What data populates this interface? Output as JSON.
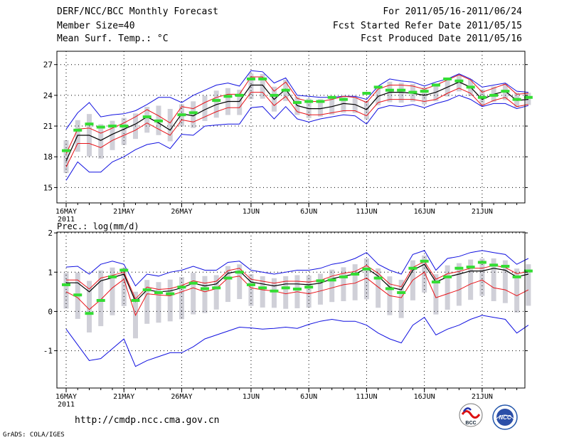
{
  "header": {
    "title": "DERF/NCC/BCC Monthly Forecast",
    "member": "Member Size=40",
    "variable": "Mean Surf. Temp.: °C",
    "period": "For 2011/05/16-2011/06/24",
    "started": "Fcst Started Refer Date 2011/05/15",
    "produced": "Fcst Produced Date 2011/05/16"
  },
  "colors": {
    "mean": "#000000",
    "sd": "#e8141a",
    "extreme": "#1010e0",
    "obs": "#33dd33",
    "box": "#d0d0d8",
    "grid": "#000000"
  },
  "footer": {
    "url": "http://cmdp.ncc.cma.gov.cn",
    "grads": "GrADS: COLA/IGES",
    "logo1": "BCC",
    "logo2": "NCC"
  },
  "chart_data": [
    {
      "type": "line",
      "title": "Mean Surf. Temp.: °C",
      "ylim": [
        13.5,
        28.3
      ],
      "yticks": [
        15,
        18,
        21,
        24,
        27
      ],
      "xlim": [
        0.2,
        40.7
      ],
      "xticks": [
        {
          "day": 1,
          "label": "16MAY",
          "sub": "2011"
        },
        {
          "day": 6,
          "label": "21MAY"
        },
        {
          "day": 11,
          "label": "26MAY"
        },
        {
          "day": 17,
          "label": "1JUN"
        },
        {
          "day": 22,
          "label": "6JUN"
        },
        {
          "day": 27,
          "label": "11JUN"
        },
        {
          "day": 32,
          "label": "16JUN"
        },
        {
          "day": 37,
          "label": "21JUN"
        }
      ],
      "series": [
        {
          "name": "mean",
          "values": [
            17.6,
            20.1,
            20.1,
            19.6,
            20.2,
            20.7,
            21.2,
            21.9,
            21.3,
            20.6,
            22.2,
            22.0,
            22.6,
            23.1,
            23.4,
            23.4,
            25.0,
            25.0,
            23.6,
            24.6,
            23.0,
            22.7,
            22.7,
            22.9,
            23.2,
            23.1,
            22.6,
            23.9,
            24.3,
            24.3,
            24.2,
            24.0,
            24.3,
            24.8,
            25.3,
            24.8,
            23.6,
            24.1,
            24.4,
            23.5,
            23.6
          ]
        },
        {
          "name": "sd_upper",
          "values": [
            18.3,
            20.7,
            20.8,
            20.3,
            20.8,
            21.3,
            21.9,
            22.6,
            22.0,
            21.3,
            22.9,
            22.7,
            23.3,
            23.8,
            24.1,
            24.1,
            25.8,
            25.8,
            24.4,
            25.3,
            23.7,
            23.4,
            23.4,
            23.6,
            23.9,
            23.8,
            23.3,
            24.6,
            25.0,
            25.0,
            24.9,
            24.6,
            25.0,
            25.5,
            26.0,
            25.5,
            24.3,
            24.7,
            25.1,
            24.1,
            24.2
          ]
        },
        {
          "name": "sd_lower",
          "values": [
            17.0,
            19.3,
            19.3,
            18.9,
            19.6,
            20.1,
            20.6,
            21.3,
            20.7,
            20.1,
            21.6,
            21.4,
            21.9,
            22.4,
            22.8,
            22.8,
            24.3,
            24.3,
            23.0,
            23.9,
            22.4,
            22.1,
            22.1,
            22.3,
            22.5,
            22.5,
            22.0,
            23.3,
            23.6,
            23.6,
            23.6,
            23.4,
            23.6,
            24.2,
            24.7,
            24.2,
            23.0,
            23.5,
            23.8,
            22.9,
            23.1
          ]
        },
        {
          "name": "max",
          "values": [
            20.7,
            22.3,
            23.3,
            21.9,
            22.1,
            22.2,
            22.5,
            23.1,
            23.8,
            23.8,
            23.3,
            24.0,
            24.5,
            25.0,
            25.2,
            24.9,
            26.4,
            26.3,
            25.2,
            25.7,
            24.0,
            23.9,
            23.8,
            23.8,
            23.9,
            23.9,
            23.6,
            24.9,
            25.6,
            25.4,
            25.3,
            24.9,
            25.3,
            25.6,
            26.1,
            25.6,
            24.8,
            25.0,
            25.2,
            24.4,
            24.3
          ]
        },
        {
          "name": "min",
          "values": [
            15.7,
            17.5,
            16.5,
            16.5,
            17.5,
            18.0,
            18.7,
            19.2,
            19.4,
            18.8,
            20.2,
            20.1,
            21.0,
            21.1,
            21.2,
            21.2,
            22.8,
            22.9,
            21.7,
            22.9,
            21.7,
            21.4,
            21.7,
            21.9,
            22.1,
            22.0,
            21.2,
            22.7,
            23.0,
            22.9,
            23.1,
            22.8,
            23.2,
            23.5,
            24.0,
            23.6,
            22.9,
            23.2,
            23.2,
            22.7,
            23.0
          ]
        },
        {
          "name": "obs",
          "values": [
            18.6,
            20.6,
            21.2,
            20.9,
            21.0,
            21.0,
            null,
            21.9,
            21.5,
            null,
            22.1,
            22.3,
            null,
            23.5,
            23.9,
            24.0,
            25.6,
            25.6,
            24.0,
            24.5,
            23.3,
            23.4,
            23.4,
            23.8,
            23.6,
            null,
            24.2,
            24.8,
            24.5,
            24.5,
            24.3,
            24.4,
            25.0,
            25.6,
            25.4,
            24.8,
            23.8,
            24.0,
            24.4,
            23.6,
            23.8
          ]
        }
      ]
    },
    {
      "type": "line",
      "title": "Prec.: log(mm/d)",
      "ylim": [
        -1.95,
        2.02
      ],
      "yticks": [
        -1,
        0,
        1,
        2
      ],
      "xlim": [
        0.2,
        40.7
      ],
      "xticks": [
        {
          "day": 1,
          "label": "16MAY",
          "sub": "2011"
        },
        {
          "day": 6,
          "label": "21MAY"
        },
        {
          "day": 11,
          "label": "26MAY"
        },
        {
          "day": 17,
          "label": "1JUN"
        },
        {
          "day": 22,
          "label": "6JUN"
        },
        {
          "day": 27,
          "label": "11JUN"
        },
        {
          "day": 32,
          "label": "16JUN"
        },
        {
          "day": 37,
          "label": "21JUN"
        }
      ],
      "series": [
        {
          "name": "mean",
          "values": [
            0.73,
            0.73,
            0.5,
            0.78,
            0.86,
            0.95,
            0.25,
            0.55,
            0.5,
            0.52,
            0.6,
            0.72,
            0.65,
            0.7,
            0.97,
            1.03,
            0.75,
            0.7,
            0.65,
            0.7,
            0.7,
            0.68,
            0.72,
            0.83,
            0.9,
            0.95,
            1.1,
            0.9,
            0.62,
            0.55,
            1.05,
            1.2,
            0.75,
            0.88,
            0.95,
            1.03,
            1.03,
            1.1,
            1.05,
            0.88,
            0.95
          ]
        },
        {
          "name": "sd_upper",
          "values": [
            0.8,
            0.8,
            0.57,
            0.85,
            0.92,
            1.0,
            0.32,
            0.62,
            0.56,
            0.58,
            0.66,
            0.78,
            0.72,
            0.77,
            1.04,
            1.1,
            0.82,
            0.77,
            0.72,
            0.77,
            0.77,
            0.75,
            0.79,
            0.9,
            0.97,
            1.02,
            1.17,
            0.97,
            0.7,
            0.63,
            1.12,
            1.27,
            0.82,
            0.96,
            1.02,
            1.1,
            1.1,
            1.17,
            1.12,
            0.96,
            1.02
          ]
        },
        {
          "name": "sd_lower",
          "values": [
            0.5,
            0.35,
            0.05,
            0.3,
            0.6,
            0.82,
            -0.1,
            0.45,
            0.42,
            0.4,
            0.5,
            0.6,
            0.5,
            0.58,
            0.85,
            0.9,
            0.6,
            0.55,
            0.52,
            0.45,
            0.5,
            0.45,
            0.52,
            0.6,
            0.68,
            0.72,
            0.85,
            0.62,
            0.4,
            0.35,
            0.8,
            1.0,
            0.35,
            0.45,
            0.55,
            0.7,
            0.8,
            0.6,
            0.55,
            0.4,
            0.55
          ]
        },
        {
          "name": "max",
          "values": [
            1.13,
            1.15,
            0.95,
            1.2,
            1.28,
            1.2,
            0.65,
            0.95,
            0.9,
            1.0,
            1.05,
            1.15,
            1.05,
            1.05,
            1.25,
            1.28,
            1.05,
            1.0,
            0.95,
            1.0,
            1.05,
            1.05,
            1.1,
            1.2,
            1.25,
            1.35,
            1.5,
            1.2,
            1.05,
            0.95,
            1.45,
            1.55,
            1.05,
            1.35,
            1.4,
            1.5,
            1.55,
            1.5,
            1.45,
            1.2,
            1.35
          ]
        },
        {
          "name": "min",
          "values": [
            -0.45,
            -0.85,
            -1.25,
            -1.2,
            -0.95,
            -0.7,
            -1.4,
            -1.25,
            -1.15,
            -1.05,
            -1.05,
            -0.9,
            -0.7,
            -0.6,
            -0.5,
            -0.4,
            -0.42,
            -0.45,
            -0.43,
            -0.4,
            -0.43,
            -0.33,
            -0.25,
            -0.2,
            -0.25,
            -0.25,
            -0.35,
            -0.55,
            -0.7,
            -0.8,
            -0.35,
            -0.15,
            -0.6,
            -0.45,
            -0.35,
            -0.2,
            -0.1,
            -0.15,
            -0.2,
            -0.55,
            -0.35
          ]
        },
        {
          "name": "obs",
          "values": [
            0.68,
            0.42,
            -0.05,
            0.28,
            0.88,
            1.05,
            0.28,
            0.55,
            0.48,
            0.45,
            0.62,
            0.72,
            0.58,
            0.6,
            0.85,
            1.0,
            0.68,
            0.6,
            0.52,
            0.6,
            0.57,
            0.62,
            0.78,
            0.8,
            0.88,
            0.95,
            1.08,
            0.85,
            0.58,
            0.48,
            1.1,
            1.28,
            0.75,
            0.88,
            1.1,
            1.13,
            1.25,
            1.18,
            1.15,
            0.88,
            1.03
          ]
        }
      ]
    }
  ]
}
